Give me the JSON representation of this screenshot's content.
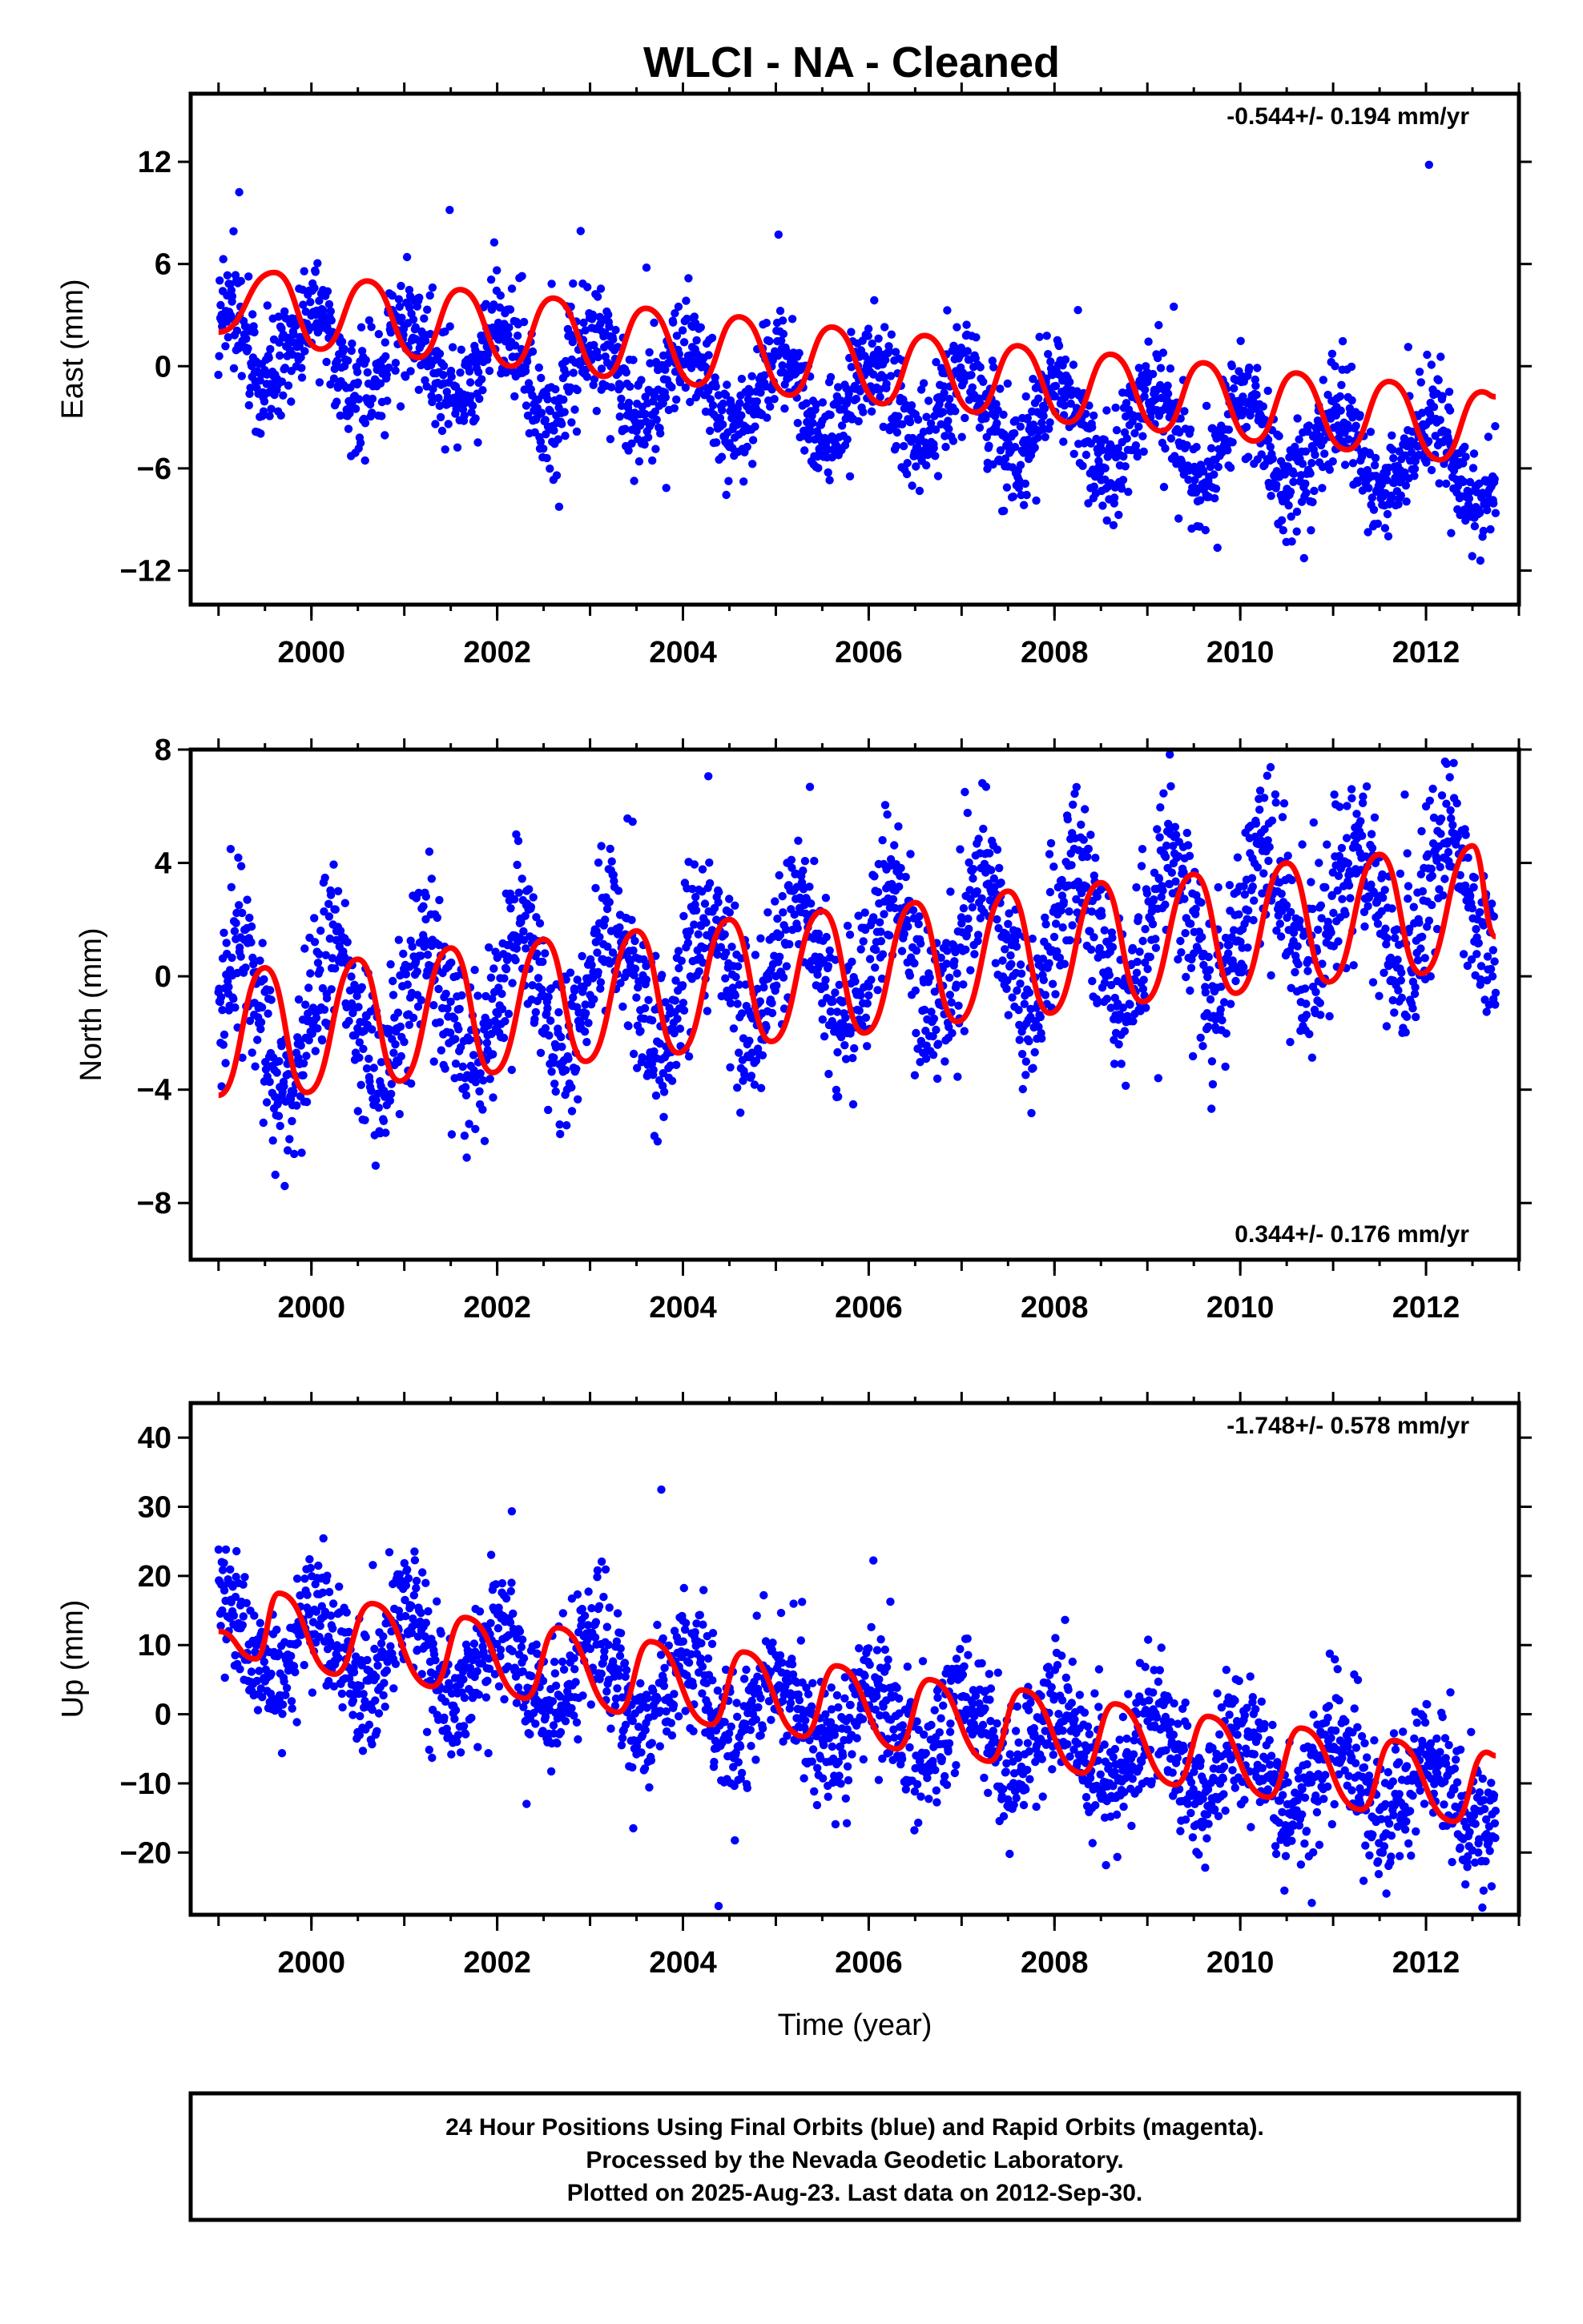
{
  "title": "WLCI  - NA - Cleaned",
  "colors": {
    "data": "#0000ff",
    "model": "#ff0000",
    "frame": "#000000"
  },
  "chart_data": [
    {
      "type": "scatter",
      "ylabel": "East (mm)",
      "xlabel": "",
      "rate_label": "-0.544+/- 0.194 mm/yr",
      "rate_position": "top-right",
      "xlim": [
        1998.7,
        2013.0
      ],
      "ylim": [
        -14,
        16
      ],
      "yticks": [
        -12,
        -6,
        0,
        6,
        12
      ],
      "xticks": [
        2000,
        2002,
        2004,
        2006,
        2008,
        2010,
        2012
      ],
      "series": [
        {
          "kind": "points",
          "start": 1999.0,
          "end": 2012.75,
          "trend_start": 1.6,
          "rate": -0.544,
          "annual_amp": 2.4,
          "annual_phase": 1.3,
          "scatter_sd": 1.6
        },
        {
          "kind": "model-curve",
          "x": [
            1999.0,
            1999.6,
            2000.1,
            2000.6,
            2001.15,
            2001.6,
            2002.15,
            2002.6,
            2003.15,
            2003.6,
            2004.15,
            2004.6,
            2005.15,
            2005.6,
            2006.15,
            2006.6,
            2007.15,
            2007.6,
            2008.15,
            2008.6,
            2009.15,
            2009.6,
            2010.15,
            2010.6,
            2011.15,
            2011.6,
            2012.15,
            2012.6,
            2012.75
          ],
          "y": [
            2.0,
            5.5,
            1.0,
            5.0,
            0.5,
            4.5,
            0.0,
            4.0,
            -0.6,
            3.4,
            -1.1,
            2.9,
            -1.7,
            2.3,
            -2.2,
            1.8,
            -2.7,
            1.2,
            -3.3,
            0.7,
            -3.8,
            0.2,
            -4.4,
            -0.4,
            -4.9,
            -0.9,
            -5.5,
            -1.5,
            -1.8
          ]
        }
      ]
    },
    {
      "type": "scatter",
      "ylabel": "North (mm)",
      "xlabel": "",
      "rate_label": "0.344+/- 0.176 mm/yr",
      "rate_position": "bottom-right",
      "xlim": [
        1998.7,
        2013.0
      ],
      "ylim": [
        -10,
        8
      ],
      "yticks": [
        -8,
        -4,
        0,
        4,
        8
      ],
      "xticks": [
        2000,
        2002,
        2004,
        2006,
        2008,
        2010,
        2012
      ],
      "series": [
        {
          "kind": "points",
          "start": 1999.0,
          "end": 2012.75,
          "trend_start": -1.8,
          "rate": 0.344,
          "annual_amp": 2.3,
          "annual_phase": 0.1,
          "scatter_sd": 1.4
        },
        {
          "kind": "model-curve",
          "x": [
            1999.0,
            1999.5,
            1999.95,
            2000.5,
            2000.95,
            2001.5,
            2001.95,
            2002.5,
            2002.95,
            2003.5,
            2003.95,
            2004.5,
            2004.95,
            2005.5,
            2005.95,
            2006.5,
            2006.95,
            2007.5,
            2007.95,
            2008.5,
            2008.95,
            2009.5,
            2009.95,
            2010.5,
            2010.95,
            2011.5,
            2011.95,
            2012.5,
            2012.75
          ],
          "y": [
            -4.2,
            0.3,
            -4.1,
            0.6,
            -3.7,
            1.0,
            -3.4,
            1.3,
            -3.0,
            1.6,
            -2.7,
            2.0,
            -2.3,
            2.3,
            -2.0,
            2.6,
            -1.6,
            3.0,
            -1.3,
            3.3,
            -0.9,
            3.6,
            -0.6,
            4.0,
            -0.2,
            4.3,
            0.1,
            4.6,
            1.4
          ]
        }
      ]
    },
    {
      "type": "scatter",
      "ylabel": "Up (mm)",
      "xlabel": "Time (year)",
      "rate_label": "-1.748+/- 0.578 mm/yr",
      "rate_position": "top-right",
      "xlim": [
        1998.7,
        2013.0
      ],
      "ylim": [
        -29,
        45
      ],
      "yticks": [
        -20,
        -10,
        0,
        10,
        20,
        30,
        40
      ],
      "xticks": [
        2000,
        2002,
        2004,
        2006,
        2008,
        2010,
        2012
      ],
      "series": [
        {
          "kind": "points",
          "start": 1999.0,
          "end": 2012.75,
          "trend_start": 12.0,
          "rate": -1.748,
          "annual_amp": 5.5,
          "annual_phase": 1.3,
          "scatter_sd": 4.6
        },
        {
          "kind": "model-curve",
          "x": [
            1999.0,
            1999.4,
            1999.65,
            2000.25,
            2000.65,
            2001.3,
            2001.65,
            2002.3,
            2002.65,
            2003.3,
            2003.65,
            2004.3,
            2004.65,
            2005.3,
            2005.65,
            2006.3,
            2006.65,
            2007.3,
            2007.65,
            2008.3,
            2008.65,
            2009.3,
            2009.65,
            2010.3,
            2010.65,
            2011.3,
            2011.65,
            2012.3,
            2012.65,
            2012.75
          ],
          "y": [
            12.0,
            8.0,
            17.5,
            5.8,
            16.0,
            4.0,
            14.0,
            2.3,
            12.5,
            0.3,
            10.5,
            -1.5,
            9.0,
            -3.2,
            7.0,
            -5.0,
            5.0,
            -6.8,
            3.5,
            -8.5,
            1.5,
            -10.2,
            -0.3,
            -12.0,
            -2.0,
            -13.8,
            -3.8,
            -15.5,
            -5.5,
            -6.0
          ]
        }
      ]
    }
  ],
  "footer": {
    "line1": "24 Hour Positions Using Final Orbits (blue) and Rapid Orbits (magenta).",
    "line2": "Processed by the Nevada Geodetic Laboratory.",
    "line3": "Plotted on 2025-Aug-23. Last data on 2012-Sep-30."
  }
}
